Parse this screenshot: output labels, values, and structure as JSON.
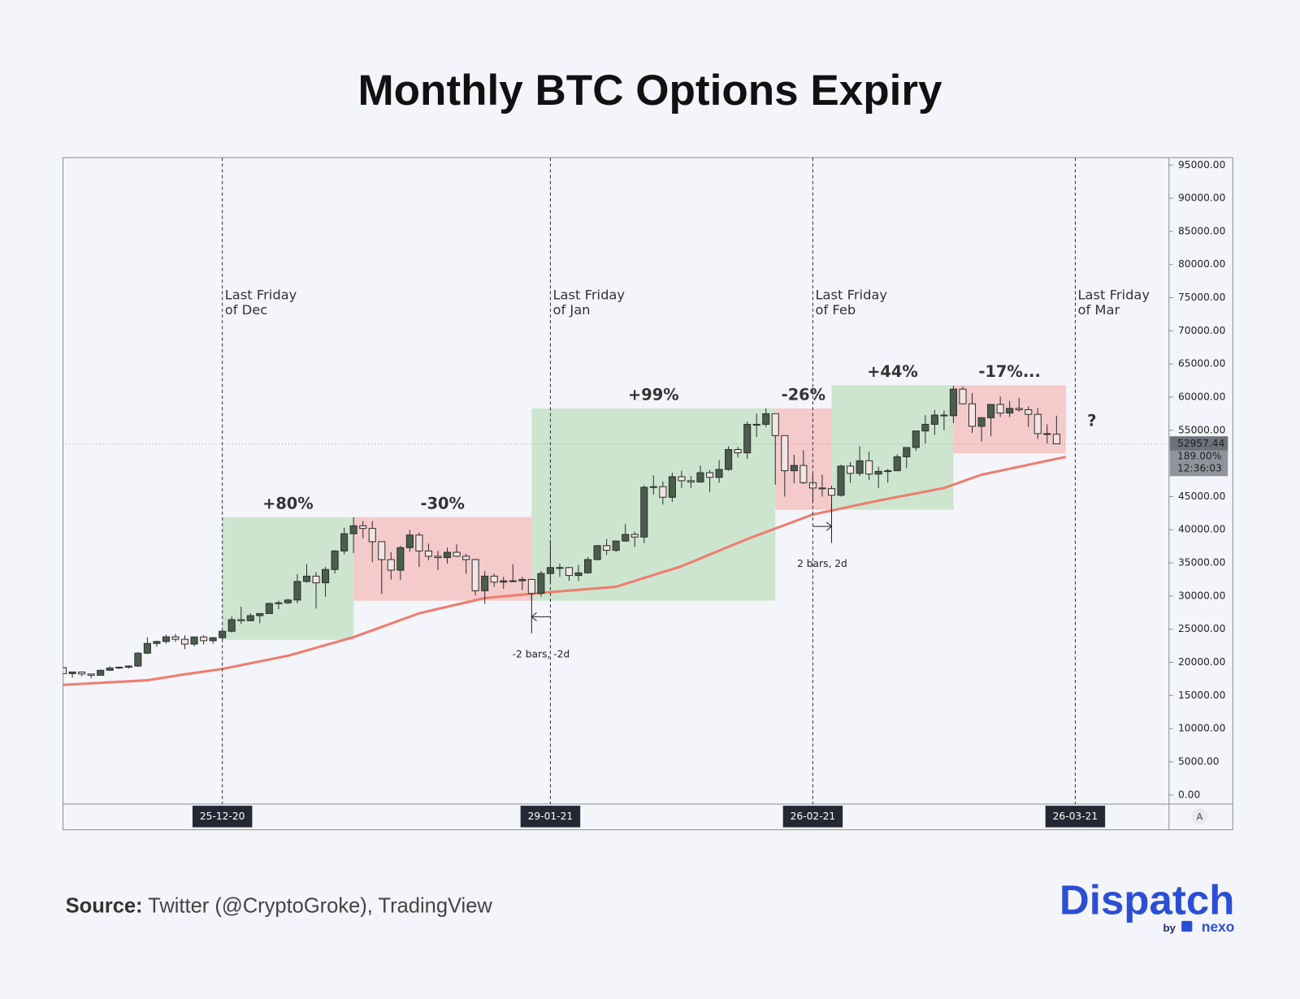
{
  "chart_data": {
    "type": "candlestick",
    "title": "Monthly BTC Options Expiry",
    "x": [
      "08-12-20",
      "09-12-20",
      "10-12-20",
      "11-12-20",
      "12-12-20",
      "13-12-20",
      "14-12-20",
      "15-12-20",
      "16-12-20",
      "17-12-20",
      "18-12-20",
      "19-12-20",
      "20-12-20",
      "21-12-20",
      "22-12-20",
      "23-12-20",
      "24-12-20",
      "25-12-20",
      "26-12-20",
      "27-12-20",
      "28-12-20",
      "29-12-20",
      "30-12-20",
      "31-12-20",
      "01-01-21",
      "02-01-21",
      "03-01-21",
      "04-01-21",
      "05-01-21",
      "06-01-21",
      "07-01-21",
      "08-01-21",
      "09-01-21",
      "10-01-21",
      "11-01-21",
      "12-01-21",
      "13-01-21",
      "14-01-21",
      "15-01-21",
      "16-01-21",
      "17-01-21",
      "18-01-21",
      "19-01-21",
      "20-01-21",
      "21-01-21",
      "22-01-21",
      "23-01-21",
      "24-01-21",
      "25-01-21",
      "26-01-21",
      "27-01-21",
      "28-01-21",
      "29-01-21",
      "30-01-21",
      "31-01-21",
      "01-02-21",
      "02-02-21",
      "03-02-21",
      "04-02-21",
      "05-02-21",
      "06-02-21",
      "07-02-21",
      "08-02-21",
      "09-02-21",
      "10-02-21",
      "11-02-21",
      "12-02-21",
      "13-02-21",
      "14-02-21",
      "15-02-21",
      "16-02-21",
      "17-02-21",
      "18-02-21",
      "19-02-21",
      "20-02-21",
      "21-02-21",
      "22-02-21",
      "23-02-21",
      "24-02-21",
      "25-02-21",
      "26-02-21",
      "27-02-21",
      "28-02-21",
      "01-03-21",
      "02-03-21",
      "03-03-21",
      "04-03-21",
      "05-03-21",
      "06-03-21",
      "07-03-21",
      "08-03-21",
      "09-03-21",
      "10-03-21",
      "11-03-21",
      "12-03-21",
      "13-03-21",
      "14-03-21",
      "15-03-21",
      "16-03-21",
      "17-03-21",
      "18-03-21",
      "19-03-21",
      "20-03-21",
      "21-03-21",
      "22-03-21",
      "23-03-21",
      "24-03-21"
    ],
    "open": [
      19200,
      18300,
      18550,
      18250,
      18050,
      18800,
      19150,
      19270,
      19440,
      21380,
      22850,
      23150,
      23850,
      23480,
      22750,
      23830,
      23260,
      23720,
      24690,
      26440,
      26280,
      27040,
      27360,
      28880,
      28980,
      29400,
      32200,
      33000,
      32000,
      34000,
      36800,
      39400,
      40600,
      40200,
      38200,
      35500,
      33900,
      37300,
      39200,
      36800,
      36000,
      35800,
      36600,
      36000,
      35500,
      30800,
      33000,
      32100,
      32300,
      32300,
      32500,
      30400,
      33400,
      34300,
      34300,
      33100,
      33500,
      35500,
      37600,
      36900,
      38300,
      39300,
      38900,
      46400,
      46500,
      44900,
      48000,
      47400,
      47200,
      48600,
      47900,
      49100,
      52100,
      51600,
      55900,
      55900,
      57500,
      54200,
      48900,
      49700,
      47100,
      46300,
      46200,
      45200,
      49600,
      48500,
      50400,
      48400,
      48800,
      48900,
      51000,
      52400,
      54900,
      55900,
      57300,
      57200,
      61200,
      59000,
      55600,
      56900,
      58900,
      57600,
      58300,
      58100,
      57400,
      54500,
      54400
    ],
    "high": [
      19300,
      18600,
      18560,
      18300,
      18900,
      19400,
      19350,
      19550,
      21560,
      23800,
      23280,
      24200,
      24300,
      24100,
      23850,
      24100,
      23800,
      24750,
      26900,
      28400,
      27400,
      27400,
      28990,
      29300,
      29600,
      33300,
      34800,
      33600,
      34400,
      36900,
      40300,
      41900,
      41300,
      41300,
      38200,
      36600,
      37600,
      40000,
      39600,
      37900,
      36800,
      37300,
      37800,
      36400,
      35600,
      33800,
      33400,
      32900,
      34800,
      32900,
      32600,
      33800,
      38500,
      34900,
      34400,
      34700,
      35900,
      37700,
      38600,
      38300,
      40900,
      39700,
      46700,
      48200,
      47300,
      48600,
      48900,
      48100,
      49700,
      49000,
      50500,
      52600,
      52500,
      56300,
      57500,
      58300,
      57500,
      54200,
      51300,
      52000,
      48400,
      48300,
      46600,
      49800,
      50200,
      52600,
      51800,
      49500,
      49200,
      51400,
      52400,
      54900,
      57300,
      58100,
      58000,
      61700,
      61600,
      60600,
      56900,
      58900,
      60100,
      59400,
      59900,
      58600,
      58400,
      55900,
      57200
    ],
    "low": [
      18200,
      17700,
      17900,
      17600,
      18000,
      18700,
      19000,
      19050,
      19300,
      21250,
      22350,
      22800,
      23100,
      22000,
      22400,
      22700,
      22800,
      23450,
      24500,
      25800,
      26200,
      25900,
      27320,
      28000,
      28800,
      28900,
      32000,
      28100,
      29900,
      33400,
      36300,
      36500,
      38700,
      35100,
      30300,
      32500,
      32400,
      36700,
      34400,
      35400,
      33900,
      34900,
      35900,
      33400,
      30100,
      28800,
      31400,
      31100,
      32100,
      30900,
      29300,
      29900,
      31900,
      32900,
      32300,
      32300,
      33400,
      35400,
      36200,
      36600,
      38200,
      37400,
      38000,
      45300,
      43800,
      44200,
      46300,
      46300,
      47100,
      45700,
      47100,
      48900,
      50900,
      50700,
      54000,
      55500,
      46800,
      45000,
      47000,
      46900,
      44200,
      45000,
      43100,
      45000,
      47100,
      48100,
      47500,
      46300,
      47100,
      48900,
      49300,
      51900,
      53000,
      54300,
      55000,
      56100,
      59000,
      54600,
      53300,
      54100,
      57000,
      57000,
      57800,
      55500,
      53700,
      53000,
      52900
    ],
    "close": [
      18300,
      18550,
      18250,
      18050,
      18800,
      19150,
      19270,
      19440,
      21380,
      22850,
      23150,
      23850,
      23480,
      22750,
      23830,
      23260,
      23720,
      24690,
      26440,
      26280,
      27040,
      27360,
      28880,
      28980,
      29400,
      32200,
      33000,
      32000,
      34000,
      36800,
      39400,
      40600,
      40200,
      38200,
      35500,
      33900,
      37300,
      39200,
      36800,
      36000,
      35800,
      36600,
      36000,
      35500,
      30800,
      33000,
      32100,
      32300,
      32300,
      32500,
      30400,
      33400,
      34300,
      34300,
      33100,
      33500,
      35500,
      37600,
      36900,
      38300,
      39300,
      38900,
      46400,
      46500,
      44900,
      48000,
      47400,
      47200,
      48600,
      47900,
      49100,
      52100,
      51600,
      55900,
      55900,
      57500,
      54200,
      48900,
      49700,
      47100,
      46300,
      46200,
      45200,
      49600,
      48500,
      50400,
      48400,
      48800,
      48900,
      51000,
      52400,
      54900,
      55900,
      57300,
      57200,
      61200,
      59000,
      55600,
      56900,
      58900,
      57600,
      58300,
      58100,
      57400,
      54500,
      54400,
      52957.44
    ],
    "up_color": "#4b5e4d",
    "down_color": "#f3e4e4",
    "moving_average": {
      "color": "#ee7d70",
      "x": [
        "08-12-20",
        "17-12-20",
        "21-12-20",
        "25-12-20",
        "01-01-21",
        "08-01-21",
        "15-01-21",
        "22-01-21",
        "29-01-21",
        "05-02-21",
        "12-02-21",
        "19-02-21",
        "26-02-21",
        "05-03-21",
        "12-03-21",
        "16-03-21",
        "21-03-21",
        "25-03-21"
      ],
      "values": [
        16600,
        17300,
        18200,
        19000,
        21000,
        23800,
        27400,
        29700,
        30600,
        31400,
        34500,
        38600,
        42300,
        44400,
        46300,
        48300,
        49800,
        51000
      ]
    },
    "zones": [
      {
        "start": "25-12-20",
        "end": "08-01-21",
        "low": 23400,
        "high": 41900,
        "label": "+80%",
        "color": "#cde5cf"
      },
      {
        "start": "08-01-21",
        "end": "27-01-21",
        "low": 29300,
        "high": 41900,
        "label": "-30%",
        "color": "#f5caca"
      },
      {
        "start": "27-01-21",
        "end": "22-02-21",
        "low": 29300,
        "high": 58300,
        "label": "+99%",
        "color": "#cde5cf"
      },
      {
        "start": "22-02-21",
        "end": "28-02-21",
        "low": 43000,
        "high": 58300,
        "label": "-26%",
        "color": "#f5caca"
      },
      {
        "start": "28-02-21",
        "end": "13-03-21",
        "low": 43000,
        "high": 61800,
        "label": "+44%",
        "color": "#cde5cf"
      },
      {
        "start": "13-03-21",
        "end": "25-03-21",
        "low": 51500,
        "high": 61800,
        "label": "-17%...",
        "color": "#f5caca"
      }
    ],
    "xlim": [
      "08-12-20",
      "05-04-21"
    ],
    "xticks": [
      "25-12-20",
      "29-01-21",
      "26-02-21",
      "26-03-21"
    ],
    "expiry_labels": [
      [
        "Last Friday",
        "of Dec"
      ],
      [
        "Last Friday",
        "of Jan"
      ],
      [
        "Last Friday",
        "of Feb"
      ],
      [
        "Last Friday",
        "of Mar"
      ]
    ],
    "measures": [
      {
        "from": "29-01-21",
        "to": "27-01-21",
        "label": "-2 bars, -2d"
      },
      {
        "from": "26-02-21",
        "to": "28-02-21",
        "label": "2 bars, 2d"
      }
    ],
    "question": "?",
    "ylim": [
      -1375,
      96125
    ],
    "yticks": [
      {
        "value": 0,
        "label": "0.00"
      },
      {
        "value": 5000,
        "label": "5000.00"
      },
      {
        "value": 10000,
        "label": "10000.00"
      },
      {
        "value": 15000,
        "label": "15000.00"
      },
      {
        "value": 20000,
        "label": "20000.00"
      },
      {
        "value": 25000,
        "label": "25000.00"
      },
      {
        "value": 30000,
        "label": "30000.00"
      },
      {
        "value": 35000,
        "label": "35000.00"
      },
      {
        "value": 40000,
        "label": "40000.00"
      },
      {
        "value": 45000,
        "label": "45000.00"
      },
      {
        "value": 50000,
        "label": "50000.00"
      },
      {
        "value": 55000,
        "label": "55000.00"
      },
      {
        "value": 60000,
        "label": "60000.00"
      },
      {
        "value": 65000,
        "label": "65000.00"
      },
      {
        "value": 70000,
        "label": "70000.00"
      },
      {
        "value": 75000,
        "label": "75000.00"
      },
      {
        "value": 80000,
        "label": "80000.00"
      },
      {
        "value": 85000,
        "label": "85000.00"
      },
      {
        "value": 90000,
        "label": "90000.00"
      },
      {
        "value": 95000,
        "label": "95000.00"
      }
    ],
    "last_price": {
      "value": 52957.44,
      "change": "189.00%",
      "countdown": "12:36:03"
    },
    "auto_scale": "A"
  },
  "footer": {
    "source_label": "Source:",
    "source_text": " Twitter (@CryptoGroke), TradingView",
    "logo": "Dispatch",
    "logo_by": "by",
    "logo_partner": "nexo"
  }
}
